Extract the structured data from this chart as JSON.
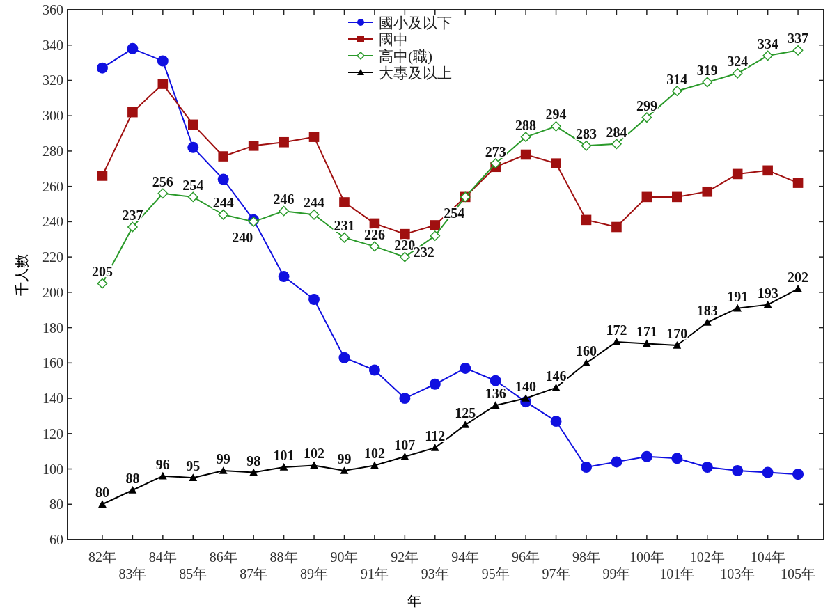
{
  "chart_data": {
    "type": "line",
    "xlabel": "年",
    "ylabel": "千人數",
    "categories": [
      "82年",
      "83年",
      "84年",
      "85年",
      "86年",
      "87年",
      "88年",
      "89年",
      "90年",
      "91年",
      "92年",
      "93年",
      "94年",
      "95年",
      "96年",
      "97年",
      "98年",
      "99年",
      "100年",
      "101年",
      "102年",
      "103年",
      "104年",
      "105年"
    ],
    "ylim": [
      60,
      360
    ],
    "yticks": [
      60,
      80,
      100,
      120,
      140,
      160,
      180,
      200,
      220,
      240,
      260,
      280,
      300,
      320,
      340,
      360
    ],
    "grid": false,
    "legend": "top",
    "series": [
      {
        "name": "國小及以下",
        "color": "#1010e0",
        "marker": "circle",
        "values": [
          327,
          338,
          331,
          282,
          264,
          241,
          209,
          196,
          163,
          156,
          140,
          148,
          157,
          150,
          138,
          127,
          101,
          104,
          107,
          106,
          101,
          99,
          98,
          97
        ]
      },
      {
        "name": "國中",
        "color": "#a01010",
        "marker": "square",
        "values": [
          266,
          302,
          318,
          295,
          277,
          283,
          285,
          288,
          251,
          239,
          233,
          238,
          254,
          271,
          278,
          273,
          241,
          237,
          254,
          254,
          257,
          267,
          269,
          262
        ]
      },
      {
        "name": "高中(職)",
        "color": "#2a9a2a",
        "marker": "diamond",
        "values": [
          205,
          237,
          256,
          254,
          244,
          240,
          246,
          244,
          231,
          226,
          220,
          232,
          254,
          273,
          288,
          294,
          283,
          284,
          299,
          314,
          319,
          324,
          334,
          337
        ],
        "value_labels": [
          "205",
          "237",
          "256",
          "254",
          "244",
          "240",
          "246",
          "244",
          "231",
          "226",
          "220",
          "232",
          "254",
          "273",
          "288",
          "294",
          "283",
          "284",
          "299",
          "314",
          "319",
          "324",
          "334",
          "337"
        ]
      },
      {
        "name": "大專及以上",
        "color": "#000000",
        "marker": "triangle",
        "values": [
          80,
          88,
          96,
          95,
          99,
          98,
          101,
          102,
          99,
          102,
          107,
          112,
          125,
          136,
          140,
          146,
          160,
          172,
          171,
          170,
          183,
          191,
          193,
          202
        ],
        "value_labels": [
          "80",
          "88",
          "96",
          "95",
          "99",
          "98",
          "101",
          "102",
          "99",
          "102",
          "107",
          "112",
          "125",
          "136",
          "140",
          "146",
          "160",
          "172",
          "171",
          "170",
          "183",
          "191",
          "193",
          "202"
        ]
      }
    ]
  }
}
